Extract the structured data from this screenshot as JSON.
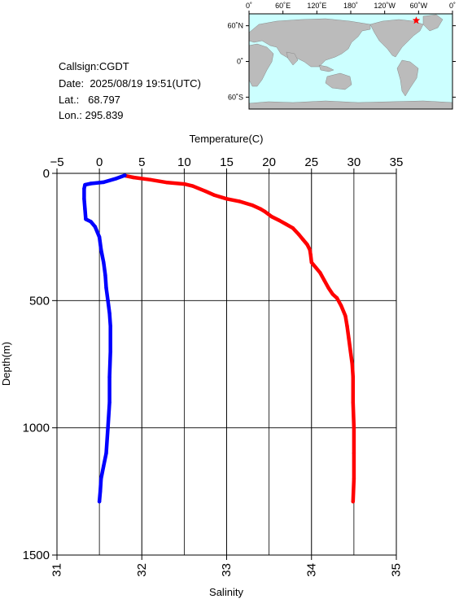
{
  "info": {
    "callsign_label": "Callsign:",
    "callsign": "CGDT",
    "date_label": "Date:",
    "date": "2025/08/19 19:51(UTC)",
    "lat_label": "Lat.:",
    "lat": "68.797",
    "lon_label": "Lon.:",
    "lon": "295.839"
  },
  "map": {
    "lon_ticks": [
      "0˚",
      "60˚E",
      "120˚E",
      "180˚",
      "120˚W",
      "60˚W",
      "0˚"
    ],
    "lat_ticks": [
      "60˚N",
      "0˚",
      "60˚S"
    ],
    "marker_lat": 68.797,
    "marker_lon": 295.839,
    "colors": {
      "ocean": "#ccffff",
      "land": "#bbbbbb",
      "marker": "#ff0000"
    }
  },
  "chart_data": {
    "type": "line",
    "ylabel": "Depth(m)",
    "ylim": [
      1500,
      0
    ],
    "yticks": [
      0,
      500,
      1000,
      1500
    ],
    "temperature_axis": {
      "label": "Temperature(C)",
      "range": [
        -5,
        35
      ],
      "ticks": [
        -5,
        0,
        5,
        10,
        15,
        20,
        25,
        30,
        35
      ]
    },
    "salinity_axis": {
      "label": "Salinity",
      "range": [
        31,
        35
      ],
      "ticks": [
        31,
        32,
        33,
        34,
        35
      ]
    },
    "grid": true,
    "series": [
      {
        "axis": "temperature",
        "color": "#ff0000",
        "points": [
          [
            3.1,
            10
          ],
          [
            4.0,
            16
          ],
          [
            6.0,
            25
          ],
          [
            8.0,
            36
          ],
          [
            10.0,
            42
          ],
          [
            11.0,
            50
          ],
          [
            12.5,
            70
          ],
          [
            13.5,
            85
          ],
          [
            15.0,
            100
          ],
          [
            16.5,
            110
          ],
          [
            18.0,
            125
          ],
          [
            19.0,
            140
          ],
          [
            19.5,
            150
          ],
          [
            20.3,
            170
          ],
          [
            21.2,
            185
          ],
          [
            22.0,
            200
          ],
          [
            22.8,
            215
          ],
          [
            23.5,
            240
          ],
          [
            24.0,
            260
          ],
          [
            24.5,
            280
          ],
          [
            24.8,
            300
          ],
          [
            24.9,
            320
          ],
          [
            25.0,
            350
          ],
          [
            25.5,
            370
          ],
          [
            26.0,
            390
          ],
          [
            26.5,
            420
          ],
          [
            27.0,
            450
          ],
          [
            27.5,
            475
          ],
          [
            28.0,
            490
          ],
          [
            28.5,
            520
          ],
          [
            29.0,
            560
          ],
          [
            29.2,
            600
          ],
          [
            29.4,
            650
          ],
          [
            29.6,
            700
          ],
          [
            29.8,
            750
          ],
          [
            29.9,
            800
          ],
          [
            29.9,
            900
          ],
          [
            30.0,
            1000
          ],
          [
            30.0,
            1100
          ],
          [
            30.0,
            1200
          ],
          [
            29.9,
            1290
          ]
        ]
      },
      {
        "axis": "salinity",
        "color": "#0000ff",
        "points": [
          [
            31.8,
            8
          ],
          [
            31.7,
            20
          ],
          [
            31.55,
            35
          ],
          [
            31.4,
            40
          ],
          [
            31.33,
            45
          ],
          [
            31.32,
            60
          ],
          [
            31.32,
            100
          ],
          [
            31.33,
            140
          ],
          [
            31.34,
            180
          ],
          [
            31.4,
            190
          ],
          [
            31.45,
            210
          ],
          [
            31.5,
            250
          ],
          [
            31.52,
            300
          ],
          [
            31.55,
            350
          ],
          [
            31.57,
            400
          ],
          [
            31.58,
            450
          ],
          [
            31.6,
            500
          ],
          [
            31.62,
            550
          ],
          [
            31.63,
            600
          ],
          [
            31.63,
            700
          ],
          [
            31.62,
            800
          ],
          [
            31.62,
            900
          ],
          [
            31.6,
            1000
          ],
          [
            31.58,
            1100
          ],
          [
            31.55,
            1150
          ],
          [
            31.52,
            1200
          ],
          [
            31.51,
            1250
          ],
          [
            31.5,
            1290
          ]
        ]
      }
    ]
  }
}
